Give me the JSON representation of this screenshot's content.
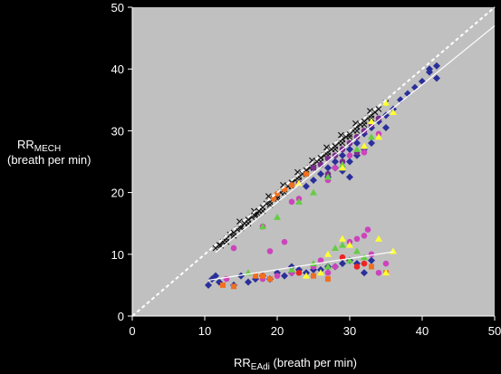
{
  "chart_data": {
    "type": "scatter",
    "xlabel_main": "RR",
    "xlabel_sub": "EAdi",
    "xlabel_rest": " (breath per min)",
    "ylabel_main": "RR",
    "ylabel_sub": "MECH",
    "ylabel_rest": "(breath per min)",
    "xlim": [
      0,
      50
    ],
    "ylim": [
      0,
      50
    ],
    "xticks": [
      0,
      10,
      20,
      30,
      40,
      50
    ],
    "yticks": [
      0,
      10,
      20,
      30,
      40,
      50
    ],
    "grid": false,
    "legend": "none",
    "colors": {
      "background": "#000000",
      "plot_area": "#c0c0c0",
      "axis": "#ffffff",
      "fit_line": "#ffffff",
      "black": "#111111",
      "navy": "#2a2f9a",
      "purple": "#7b2d8e",
      "magenta": "#cc44bb",
      "orange": "#f07020",
      "green": "#66cc44",
      "yellow": "#ffff33",
      "red": "#ee2222",
      "blue": "#3344cc"
    },
    "identity_line": [
      [
        0,
        0
      ],
      [
        50,
        50
      ]
    ],
    "fit_lines": [
      {
        "x": [
          11.5,
          50
        ],
        "y": [
          10.3,
          47
        ]
      },
      {
        "x": [
          10.5,
          36
        ],
        "y": [
          5.8,
          10.4
        ]
      }
    ],
    "series": [
      {
        "marker": "x",
        "color": "black",
        "points": [
          [
            11.5,
            11.0
          ],
          [
            12,
            11.5
          ],
          [
            12.5,
            12.0
          ],
          [
            13,
            12.5
          ],
          [
            13.5,
            13.2
          ],
          [
            14,
            13.5
          ],
          [
            14.5,
            14.0
          ],
          [
            15,
            14.5
          ],
          [
            15.5,
            15.0
          ],
          [
            16,
            15.6
          ],
          [
            16.5,
            16.0
          ],
          [
            17,
            16.5
          ],
          [
            17.5,
            17.0
          ],
          [
            18,
            17.6
          ],
          [
            18.5,
            18.2
          ],
          [
            19,
            18.5
          ],
          [
            19.5,
            19.0
          ],
          [
            20,
            19.4
          ],
          [
            20.5,
            20.0
          ],
          [
            21,
            20.5
          ],
          [
            21.5,
            21.0
          ],
          [
            22,
            21.6
          ],
          [
            22.5,
            22.0
          ],
          [
            23,
            22.5
          ],
          [
            23.5,
            23.0
          ],
          [
            24,
            23.6
          ],
          [
            24.5,
            24.0
          ],
          [
            25,
            24.5
          ],
          [
            25.5,
            25.0
          ],
          [
            26,
            25.6
          ],
          [
            26.5,
            26.0
          ],
          [
            27,
            26.5
          ],
          [
            27.5,
            27.0
          ],
          [
            28,
            27.5
          ],
          [
            28.5,
            28.0
          ],
          [
            29,
            28.6
          ],
          [
            29.5,
            29.0
          ],
          [
            30,
            29.4
          ],
          [
            30.5,
            30.0
          ],
          [
            31,
            30.6
          ],
          [
            31.5,
            31.0
          ],
          [
            32,
            31.5
          ],
          [
            32.5,
            32.0
          ],
          [
            33,
            32.5
          ],
          [
            33.5,
            33.0
          ],
          [
            34,
            33.5
          ],
          [
            35,
            34.5
          ],
          [
            13,
            12.0
          ],
          [
            14,
            13.0
          ],
          [
            15,
            14.2
          ],
          [
            16,
            15.0
          ],
          [
            17,
            16.2
          ],
          [
            18,
            17.0
          ],
          [
            19,
            18.0
          ],
          [
            20,
            19.0
          ],
          [
            21,
            20.0
          ],
          [
            22,
            21.0
          ],
          [
            23,
            22.0
          ],
          [
            24,
            23.0
          ],
          [
            25,
            24.0
          ],
          [
            26,
            25.0
          ],
          [
            27,
            26.0
          ],
          [
            28,
            27.0
          ],
          [
            29,
            28.0
          ],
          [
            30,
            29.0
          ],
          [
            31,
            30.0
          ],
          [
            32,
            31.0
          ],
          [
            33,
            32.0
          ],
          [
            12.2,
            11.4
          ],
          [
            16.8,
            17.0
          ],
          [
            20.8,
            21.2
          ],
          [
            24.8,
            25.2
          ],
          [
            28.8,
            29.3
          ],
          [
            32.8,
            33.2
          ],
          [
            18.8,
            19.4
          ],
          [
            22.8,
            23.3
          ],
          [
            26.8,
            27.3
          ],
          [
            30.8,
            31.2
          ],
          [
            14.8,
            15.3
          ],
          [
            17.3,
            16.6
          ]
        ]
      },
      {
        "marker": "diamond",
        "color": "navy",
        "points": [
          [
            26,
            23.0
          ],
          [
            27,
            24.0
          ],
          [
            28,
            25.0
          ],
          [
            29,
            26.0
          ],
          [
            30,
            27.0
          ],
          [
            31,
            28.0
          ],
          [
            32,
            29.5
          ],
          [
            33,
            30.5
          ],
          [
            34,
            31.5
          ],
          [
            35,
            32.5
          ],
          [
            36,
            33.5
          ],
          [
            37,
            35.0
          ],
          [
            38,
            36.0
          ],
          [
            39,
            37.0
          ],
          [
            40,
            38.0
          ],
          [
            41,
            39.5
          ],
          [
            42,
            40.5
          ],
          [
            42,
            38.5
          ],
          [
            41,
            40.0
          ],
          [
            29,
            23.5
          ],
          [
            30,
            25.0
          ],
          [
            31,
            26.0
          ],
          [
            32,
            27.0
          ],
          [
            24,
            21.0
          ],
          [
            25,
            22.0
          ],
          [
            27,
            22.5
          ],
          [
            33,
            28.0
          ],
          [
            35,
            30.5
          ],
          [
            30,
            22.5
          ],
          [
            28,
            24.0
          ]
        ]
      },
      {
        "marker": "circle",
        "color": "purple",
        "points": [
          [
            25,
            24.0
          ],
          [
            26,
            24.5
          ],
          [
            27,
            25.5
          ],
          [
            28,
            26.0
          ],
          [
            29,
            27.0
          ],
          [
            30,
            28.0
          ],
          [
            31,
            29.0
          ],
          [
            32,
            30.0
          ],
          [
            33,
            31.0
          ],
          [
            34,
            32.0
          ],
          [
            31,
            26.5
          ],
          [
            29,
            25.0
          ],
          [
            27,
            23.0
          ],
          [
            23,
            21.5
          ]
        ]
      },
      {
        "marker": "circle",
        "color": "magenta",
        "points": [
          [
            14,
            11.0
          ],
          [
            18,
            14.5
          ],
          [
            22,
            18.5
          ],
          [
            23,
            19.0
          ],
          [
            27,
            22.0
          ],
          [
            28,
            24.0
          ],
          [
            30,
            26.0
          ],
          [
            32,
            26.5
          ],
          [
            34,
            29.5
          ],
          [
            19,
            10.5
          ],
          [
            21,
            12.0
          ]
        ]
      },
      {
        "marker": "circle",
        "color": "orange",
        "points": [
          [
            19.5,
            19.0
          ],
          [
            21,
            20.5
          ],
          [
            22,
            21.2
          ],
          [
            20,
            19.8
          ],
          [
            24,
            23.0
          ]
        ]
      },
      {
        "marker": "triangle",
        "color": "green",
        "points": [
          [
            18,
            14.5
          ],
          [
            20,
            16.0
          ],
          [
            23,
            18.5
          ],
          [
            25,
            20.0
          ],
          [
            27,
            22.5
          ],
          [
            29,
            24.5
          ],
          [
            31,
            27.0
          ],
          [
            33,
            29.0
          ]
        ]
      },
      {
        "marker": "triangle",
        "color": "yellow",
        "points": [
          [
            23,
            21.5
          ],
          [
            29,
            24.0
          ],
          [
            32,
            27.5
          ],
          [
            34,
            29.0
          ],
          [
            36,
            33.0
          ],
          [
            35,
            34.5
          ],
          [
            33,
            31.5
          ]
        ]
      },
      {
        "marker": "diamond",
        "color": "navy",
        "points": [
          [
            10.5,
            5.0
          ],
          [
            11,
            6.0
          ],
          [
            11.5,
            6.5
          ],
          [
            12,
            5.5
          ],
          [
            14,
            5.0
          ],
          [
            15,
            6.5
          ],
          [
            16,
            5.5
          ],
          [
            17,
            6.0
          ],
          [
            18,
            6.5
          ],
          [
            19,
            6.0
          ],
          [
            20,
            7.0
          ],
          [
            21,
            6.5
          ],
          [
            22,
            7.0
          ],
          [
            23,
            7.5
          ],
          [
            24,
            7.0
          ],
          [
            25,
            7.5
          ],
          [
            26,
            7.5
          ],
          [
            27,
            8.0
          ],
          [
            28,
            8.0
          ],
          [
            29,
            8.5
          ],
          [
            30,
            9.0
          ],
          [
            31,
            8.5
          ],
          [
            32,
            7.0
          ],
          [
            33,
            9.0
          ],
          [
            22,
            8.0
          ]
        ]
      },
      {
        "marker": "circle",
        "color": "magenta",
        "points": [
          [
            13,
            6.0
          ],
          [
            18,
            6.0
          ],
          [
            20,
            6.5
          ],
          [
            22,
            7.0
          ],
          [
            25,
            8.0
          ],
          [
            27,
            7.0
          ],
          [
            28,
            8.0
          ],
          [
            30,
            12.0
          ],
          [
            31,
            12.5
          ],
          [
            32,
            13.0
          ],
          [
            32.5,
            14.0
          ],
          [
            34,
            7.0
          ],
          [
            35,
            8.5
          ],
          [
            33,
            10.0
          ],
          [
            26,
            9.0
          ]
        ]
      },
      {
        "marker": "square",
        "color": "orange",
        "points": [
          [
            12.5,
            5.0
          ],
          [
            14,
            4.8
          ],
          [
            17,
            6.5
          ],
          [
            18,
            6.5
          ],
          [
            19,
            6.0
          ],
          [
            25,
            6.5
          ],
          [
            27,
            6.0
          ],
          [
            35,
            7.0
          ],
          [
            33,
            8.0
          ]
        ]
      },
      {
        "marker": "triangle",
        "color": "green",
        "points": [
          [
            16,
            7.0
          ],
          [
            22,
            7.5
          ],
          [
            25,
            8.5
          ],
          [
            27,
            8.0
          ],
          [
            28,
            11.0
          ],
          [
            29,
            11.5
          ],
          [
            30,
            9.0
          ],
          [
            31,
            10.5
          ],
          [
            32,
            9.5
          ]
        ]
      },
      {
        "marker": "triangle",
        "color": "yellow",
        "points": [
          [
            24,
            6.5
          ],
          [
            26,
            7.0
          ],
          [
            29,
            12.5
          ],
          [
            30,
            11.5
          ],
          [
            34,
            12.5
          ],
          [
            35,
            7.0
          ],
          [
            36,
            10.5
          ],
          [
            27,
            10.0
          ]
        ]
      },
      {
        "marker": "circle",
        "color": "red",
        "points": [
          [
            23,
            7.0
          ],
          [
            29,
            9.5
          ],
          [
            31,
            8.0
          ],
          [
            32,
            8.5
          ]
        ]
      }
    ]
  }
}
